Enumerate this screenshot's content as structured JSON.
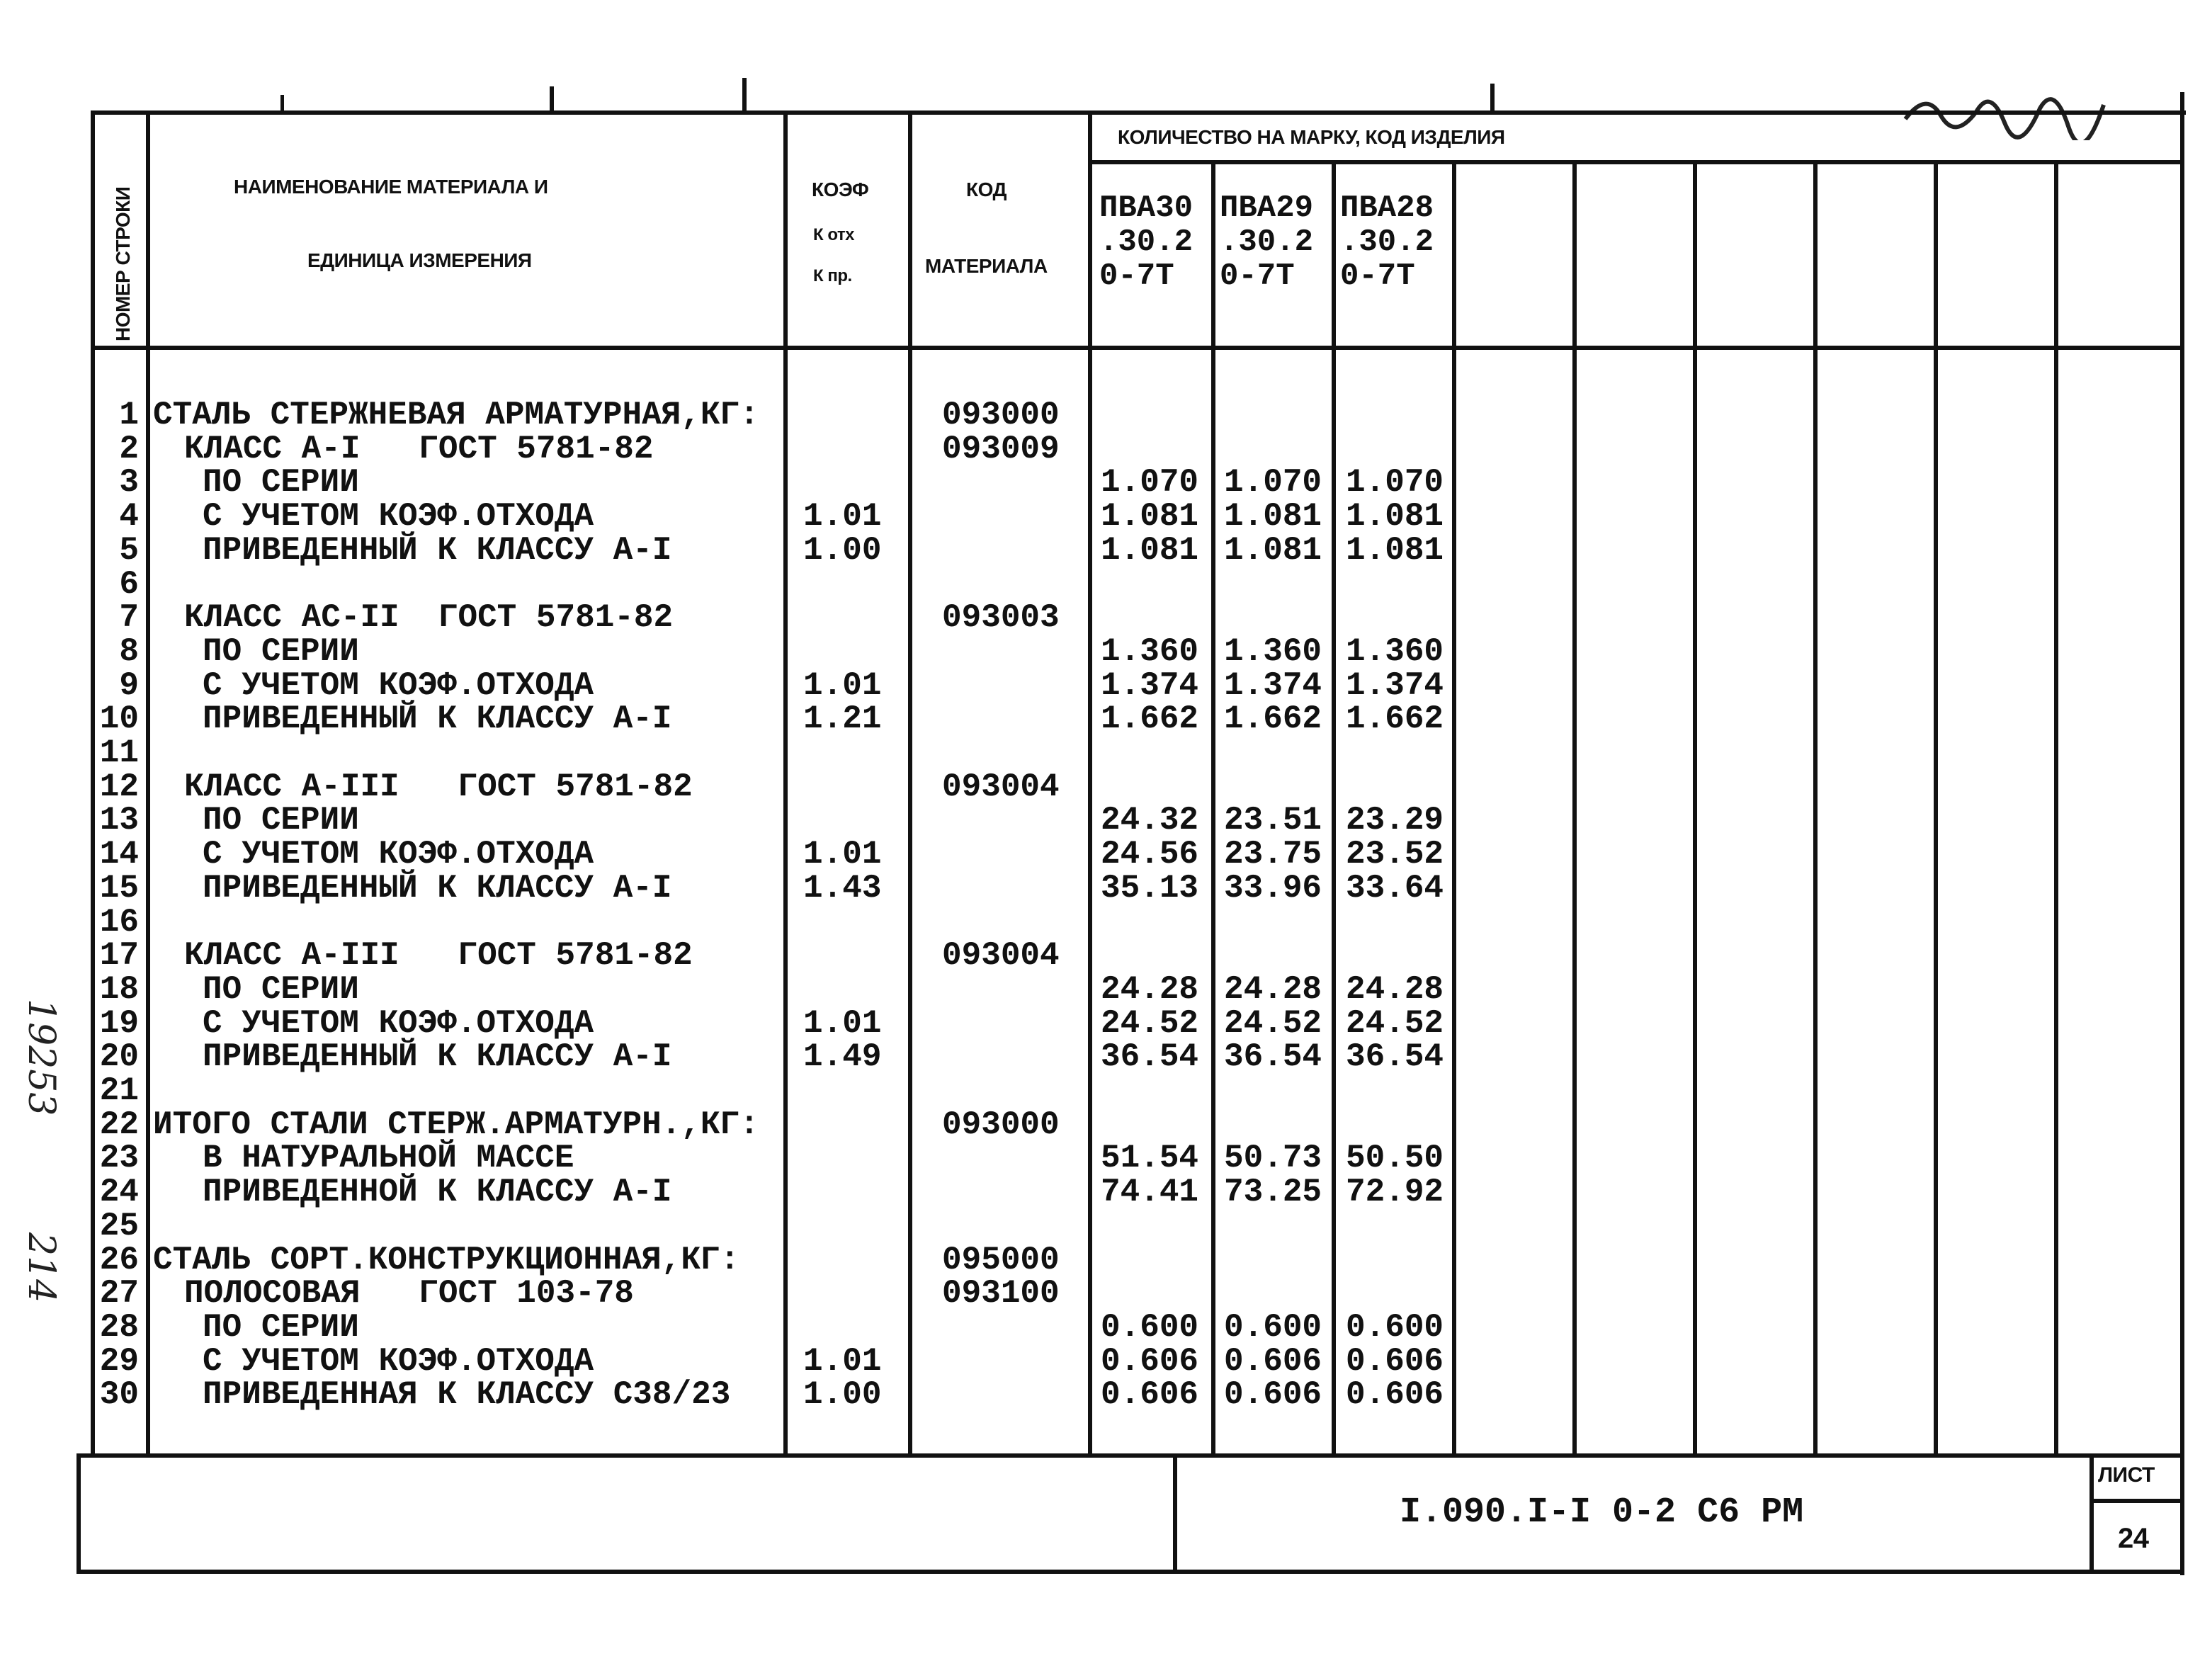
{
  "header": {
    "row_number": "НОМЕР СТРОКИ",
    "material_name_line1": "НАИМЕНОВАНИЕ  МАТЕРИАЛА  И",
    "material_name_line2": "ЕДИНИЦА ИЗМЕРЕНИЯ",
    "koef": "КОЭФ",
    "k_otx": "К отх",
    "k_pr": "К пр.",
    "code_line1": "КОД",
    "code_line2": "МАТЕРИАЛА",
    "quantity": "КОЛИЧЕСТВО НА МАРКУ, КОД ИЗДЕЛИЯ",
    "marks": [
      [
        "ПВА30",
        ".30.2",
        "0-7Т"
      ],
      [
        "ПВА29",
        ".30.2",
        "0-7Т"
      ],
      [
        "ПВА28",
        ".30.2",
        "0-7Т"
      ]
    ]
  },
  "rows": [
    {
      "num": "1",
      "indent": 0,
      "text": "СТАЛЬ СТЕРЖНЕВАЯ АРМАТУРНАЯ,КГ:",
      "koef": "",
      "code": "093000",
      "values": []
    },
    {
      "num": "2",
      "indent": 1,
      "text": "КЛАСС А-I   ГОСТ 5781-82",
      "koef": "",
      "code": "093009",
      "values": []
    },
    {
      "num": "3",
      "indent": 2,
      "text": "ПО СЕРИИ",
      "koef": "",
      "code": "",
      "values": [
        "1.070",
        "1.070",
        "1.070"
      ]
    },
    {
      "num": "4",
      "indent": 2,
      "text": "С УЧЕТОМ КОЭФ.ОТХОДА",
      "koef": "1.01",
      "code": "",
      "values": [
        "1.081",
        "1.081",
        "1.081"
      ]
    },
    {
      "num": "5",
      "indent": 2,
      "text": "ПРИВЕДЕННЫЙ К КЛАССУ А-I",
      "koef": "1.00",
      "code": "",
      "values": [
        "1.081",
        "1.081",
        "1.081"
      ]
    },
    {
      "num": "6",
      "indent": 0,
      "text": "",
      "koef": "",
      "code": "",
      "values": []
    },
    {
      "num": "7",
      "indent": 1,
      "text": "КЛАСС АС-II  ГОСТ 5781-82",
      "koef": "",
      "code": "093003",
      "values": []
    },
    {
      "num": "8",
      "indent": 2,
      "text": "ПО СЕРИИ",
      "koef": "",
      "code": "",
      "values": [
        "1.360",
        "1.360",
        "1.360"
      ]
    },
    {
      "num": "9",
      "indent": 2,
      "text": "С УЧЕТОМ КОЭФ.ОТХОДА",
      "koef": "1.01",
      "code": "",
      "values": [
        "1.374",
        "1.374",
        "1.374"
      ]
    },
    {
      "num": "10",
      "indent": 2,
      "text": "ПРИВЕДЕННЫЙ К КЛАССУ А-I",
      "koef": "1.21",
      "code": "",
      "values": [
        "1.662",
        "1.662",
        "1.662"
      ]
    },
    {
      "num": "11",
      "indent": 0,
      "text": "",
      "koef": "",
      "code": "",
      "values": []
    },
    {
      "num": "12",
      "indent": 1,
      "text": "КЛАСС А-III   ГОСТ 5781-82",
      "koef": "",
      "code": "093004",
      "values": []
    },
    {
      "num": "13",
      "indent": 2,
      "text": "ПО СЕРИИ",
      "koef": "",
      "code": "",
      "values": [
        "24.32",
        "23.51",
        "23.29"
      ]
    },
    {
      "num": "14",
      "indent": 2,
      "text": "С УЧЕТОМ КОЭФ.ОТХОДА",
      "koef": "1.01",
      "code": "",
      "values": [
        "24.56",
        "23.75",
        "23.52"
      ]
    },
    {
      "num": "15",
      "indent": 2,
      "text": "ПРИВЕДЕННЫЙ К КЛАССУ А-I",
      "koef": "1.43",
      "code": "",
      "values": [
        "35.13",
        "33.96",
        "33.64"
      ]
    },
    {
      "num": "16",
      "indent": 0,
      "text": "",
      "koef": "",
      "code": "",
      "values": []
    },
    {
      "num": "17",
      "indent": 1,
      "text": "КЛАСС А-III   ГОСТ 5781-82",
      "koef": "",
      "code": "093004",
      "values": []
    },
    {
      "num": "18",
      "indent": 2,
      "text": "ПО СЕРИИ",
      "koef": "",
      "code": "",
      "values": [
        "24.28",
        "24.28",
        "24.28"
      ]
    },
    {
      "num": "19",
      "indent": 2,
      "text": "С УЧЕТОМ КОЭФ.ОТХОДА",
      "koef": "1.01",
      "code": "",
      "values": [
        "24.52",
        "24.52",
        "24.52"
      ]
    },
    {
      "num": "20",
      "indent": 2,
      "text": "ПРИВЕДЕННЫЙ К КЛАССУ А-I",
      "koef": "1.49",
      "code": "",
      "values": [
        "36.54",
        "36.54",
        "36.54"
      ]
    },
    {
      "num": "21",
      "indent": 0,
      "text": "",
      "koef": "",
      "code": "",
      "values": []
    },
    {
      "num": "22",
      "indent": 0,
      "text": "ИТОГО СТАЛИ СТЕРЖ.АРМАТУРН.,КГ:",
      "koef": "",
      "code": "093000",
      "values": []
    },
    {
      "num": "23",
      "indent": 2,
      "text": "В НАТУРАЛЬНОЙ МАССЕ",
      "koef": "",
      "code": "",
      "values": [
        "51.54",
        "50.73",
        "50.50"
      ]
    },
    {
      "num": "24",
      "indent": 2,
      "text": "ПРИВЕДЕННОЙ К КЛАССУ А-I",
      "koef": "",
      "code": "",
      "values": [
        "74.41",
        "73.25",
        "72.92"
      ]
    },
    {
      "num": "25",
      "indent": 0,
      "text": "",
      "koef": "",
      "code": "",
      "values": []
    },
    {
      "num": "26",
      "indent": 0,
      "text": "СТАЛЬ СОРТ.КОНСТРУКЦИОННАЯ,КГ:",
      "koef": "",
      "code": "095000",
      "values": []
    },
    {
      "num": "27",
      "indent": 1,
      "text": "ПОЛОСОВАЯ   ГОСТ 103-78",
      "koef": "",
      "code": "093100",
      "values": []
    },
    {
      "num": "28",
      "indent": 2,
      "text": "ПО СЕРИИ",
      "koef": "",
      "code": "",
      "values": [
        "0.600",
        "0.600",
        "0.600"
      ]
    },
    {
      "num": "29",
      "indent": 2,
      "text": "С УЧЕТОМ КОЭФ.ОТХОДА",
      "koef": "1.01",
      "code": "",
      "values": [
        "0.606",
        "0.606",
        "0.606"
      ]
    },
    {
      "num": "30",
      "indent": 2,
      "text": "ПРИВЕДЕННАЯ К КЛАССУ С38/23",
      "koef": "1.00",
      "code": "",
      "values": [
        "0.606",
        "0.606",
        "0.606"
      ]
    }
  ],
  "footer": {
    "document_code": "I.090.I-I 0-2 С6 РМ",
    "sheet_label": "ЛИСТ",
    "sheet_number": "24"
  },
  "margin_notes": {
    "inventory_number": "19253",
    "page_note": "214"
  }
}
